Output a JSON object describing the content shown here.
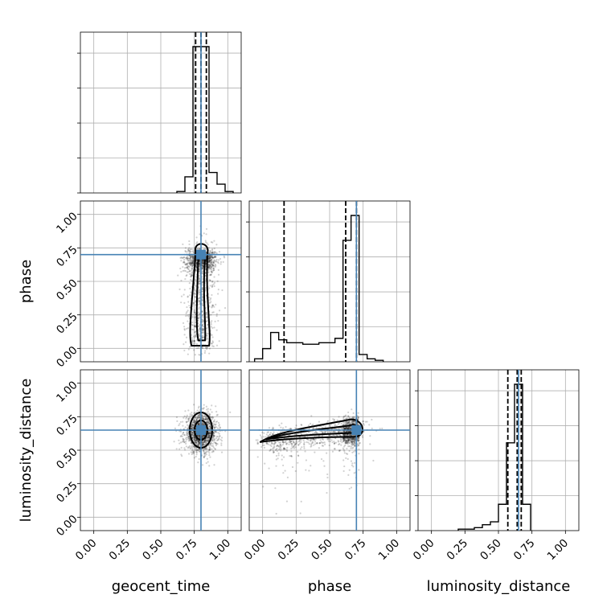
{
  "chart_data": {
    "type": "corner",
    "parameters": [
      "geocent_time",
      "phase",
      "luminosity_distance"
    ],
    "axis_labels": [
      "geocent_time",
      "phase",
      "luminosity_distance"
    ],
    "ticks": [
      0.0,
      0.25,
      0.5,
      0.75,
      1.0
    ],
    "tick_labels": [
      "0.00",
      "0.25",
      "0.50",
      "0.75",
      "1.00"
    ],
    "range": [
      -0.1,
      1.1
    ],
    "grid": true,
    "truths": {
      "geocent_time": 0.8,
      "phase": 0.7,
      "luminosity_distance": 0.65
    },
    "truth_color": "#4682b4",
    "histograms": {
      "geocent_time": {
        "bin_edges": [
          0.62,
          0.68,
          0.74,
          0.8,
          0.86,
          0.92,
          0.98,
          1.04
        ],
        "counts": [
          0.01,
          0.11,
          1.0,
          1.0,
          0.14,
          0.06,
          0.01
        ],
        "quantiles": [
          0.76,
          0.8,
          0.84
        ]
      },
      "phase": {
        "bin_edges": [
          -0.06,
          0.0,
          0.06,
          0.12,
          0.18,
          0.24,
          0.3,
          0.36,
          0.42,
          0.48,
          0.54,
          0.6,
          0.66,
          0.72,
          0.78,
          0.84,
          0.9
        ],
        "counts": [
          0.02,
          0.09,
          0.2,
          0.15,
          0.13,
          0.13,
          0.12,
          0.12,
          0.13,
          0.13,
          0.16,
          0.83,
          1.0,
          0.05,
          0.02,
          0.01
        ],
        "quantiles": [
          0.16,
          0.62,
          0.7
        ]
      },
      "luminosity_distance": {
        "bin_edges": [
          0.2,
          0.26,
          0.32,
          0.38,
          0.44,
          0.5,
          0.56,
          0.62,
          0.68,
          0.74
        ],
        "counts": [
          0.01,
          0.01,
          0.02,
          0.04,
          0.06,
          0.18,
          0.6,
          1.0,
          0.18
        ],
        "quantiles": [
          0.57,
          0.64,
          0.67
        ]
      }
    },
    "scatter_2d": [
      {
        "x": "geocent_time",
        "y": "phase",
        "x_center": 0.8,
        "x_spread": 0.06,
        "y_dist": "phase"
      },
      {
        "x": "geocent_time",
        "y": "luminosity_distance",
        "x_center": 0.8,
        "x_spread": 0.06,
        "y_center": 0.63,
        "y_spread": 0.07
      },
      {
        "x": "phase",
        "y": "luminosity_distance",
        "x_dist": "phase",
        "relation": "increasing",
        "y_at_x0": 0.56,
        "y_at_x1": 0.68
      }
    ]
  }
}
